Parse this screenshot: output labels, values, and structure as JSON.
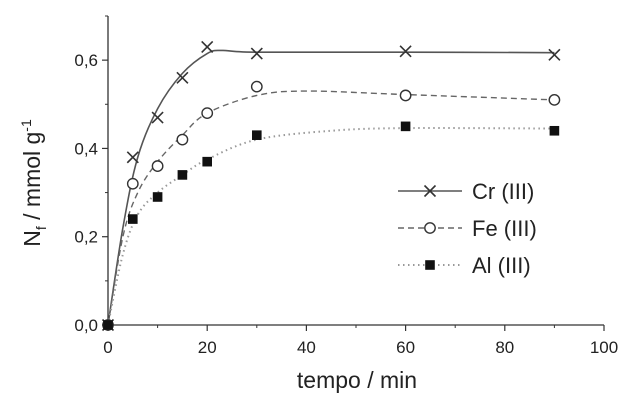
{
  "chart_data": {
    "type": "line",
    "xlabel": "tempo / min",
    "ylabel": {
      "main": "N",
      "sub": "f",
      "rest": " / mmol g",
      "sup": "-1"
    },
    "xlim": [
      0,
      100
    ],
    "ylim": [
      0,
      0.7
    ],
    "xticks": [
      0,
      20,
      40,
      60,
      80,
      100
    ],
    "xtick_labels": [
      "0",
      "20",
      "40",
      "60",
      "80",
      "100"
    ],
    "yticks": [
      0,
      0.2,
      0.4,
      0.6
    ],
    "ytick_labels": [
      "0,0",
      "0,2",
      "0,4",
      "0,6"
    ],
    "grid": false,
    "legend_position": "center-right",
    "series": [
      {
        "name": "Cr (III)",
        "marker": "x",
        "line_style": "solid",
        "color": "#555555",
        "points": [
          [
            0,
            0.0
          ],
          [
            5,
            0.38
          ],
          [
            10,
            0.47
          ],
          [
            15,
            0.56
          ],
          [
            20,
            0.63
          ],
          [
            30,
            0.615
          ],
          [
            60,
            0.62
          ],
          [
            90,
            0.612
          ]
        ],
        "fit": [
          [
            0,
            0.0
          ],
          [
            3,
            0.22
          ],
          [
            6,
            0.38
          ],
          [
            10,
            0.49
          ],
          [
            15,
            0.57
          ],
          [
            20,
            0.615
          ],
          [
            23,
            0.622
          ],
          [
            30,
            0.618
          ],
          [
            60,
            0.618
          ],
          [
            90,
            0.617
          ]
        ]
      },
      {
        "name": "Fe (III)",
        "marker": "open-circle",
        "line_style": "dashed",
        "color": "#666666",
        "points": [
          [
            0,
            0.0
          ],
          [
            5,
            0.32
          ],
          [
            10,
            0.36
          ],
          [
            15,
            0.42
          ],
          [
            20,
            0.48
          ],
          [
            30,
            0.54
          ],
          [
            60,
            0.52
          ],
          [
            90,
            0.51
          ]
        ],
        "fit": [
          [
            0,
            0.0
          ],
          [
            3,
            0.2
          ],
          [
            6,
            0.3
          ],
          [
            10,
            0.37
          ],
          [
            15,
            0.43
          ],
          [
            20,
            0.48
          ],
          [
            30,
            0.52
          ],
          [
            40,
            0.53
          ],
          [
            60,
            0.522
          ],
          [
            90,
            0.51
          ]
        ]
      },
      {
        "name": "Al (III)",
        "marker": "filled-square",
        "line_style": "dotted",
        "color": "#999999",
        "points": [
          [
            0,
            0.0
          ],
          [
            5,
            0.24
          ],
          [
            10,
            0.29
          ],
          [
            15,
            0.34
          ],
          [
            20,
            0.37
          ],
          [
            30,
            0.43
          ],
          [
            60,
            0.45
          ],
          [
            90,
            0.44
          ]
        ],
        "fit": [
          [
            0,
            0.0
          ],
          [
            3,
            0.16
          ],
          [
            6,
            0.25
          ],
          [
            10,
            0.3
          ],
          [
            15,
            0.34
          ],
          [
            20,
            0.375
          ],
          [
            30,
            0.42
          ],
          [
            45,
            0.44
          ],
          [
            60,
            0.446
          ],
          [
            90,
            0.445
          ]
        ]
      }
    ]
  }
}
